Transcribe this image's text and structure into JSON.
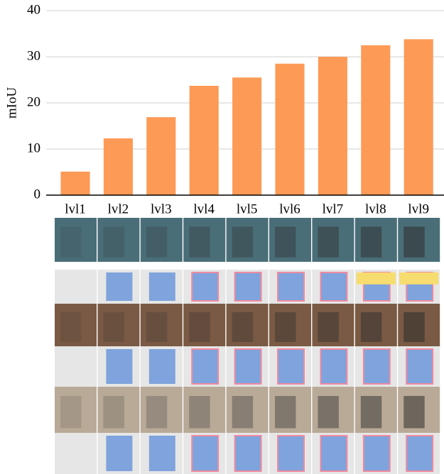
{
  "chart_data": {
    "type": "bar",
    "y_label": "mIoU",
    "categories": [
      "lvl1",
      "lvl2",
      "lvl3",
      "lvl4",
      "lvl5",
      "lvl6",
      "lvl7",
      "lvl8",
      "lvl9"
    ],
    "values": [
      5.1,
      12.3,
      16.9,
      23.7,
      25.5,
      28.5,
      30,
      32.5,
      33.8
    ],
    "color": "#fd9a55",
    "ylim": [
      0,
      40
    ],
    "yticks": [
      0,
      10,
      20,
      30,
      40
    ],
    "grid": true
  }
}
